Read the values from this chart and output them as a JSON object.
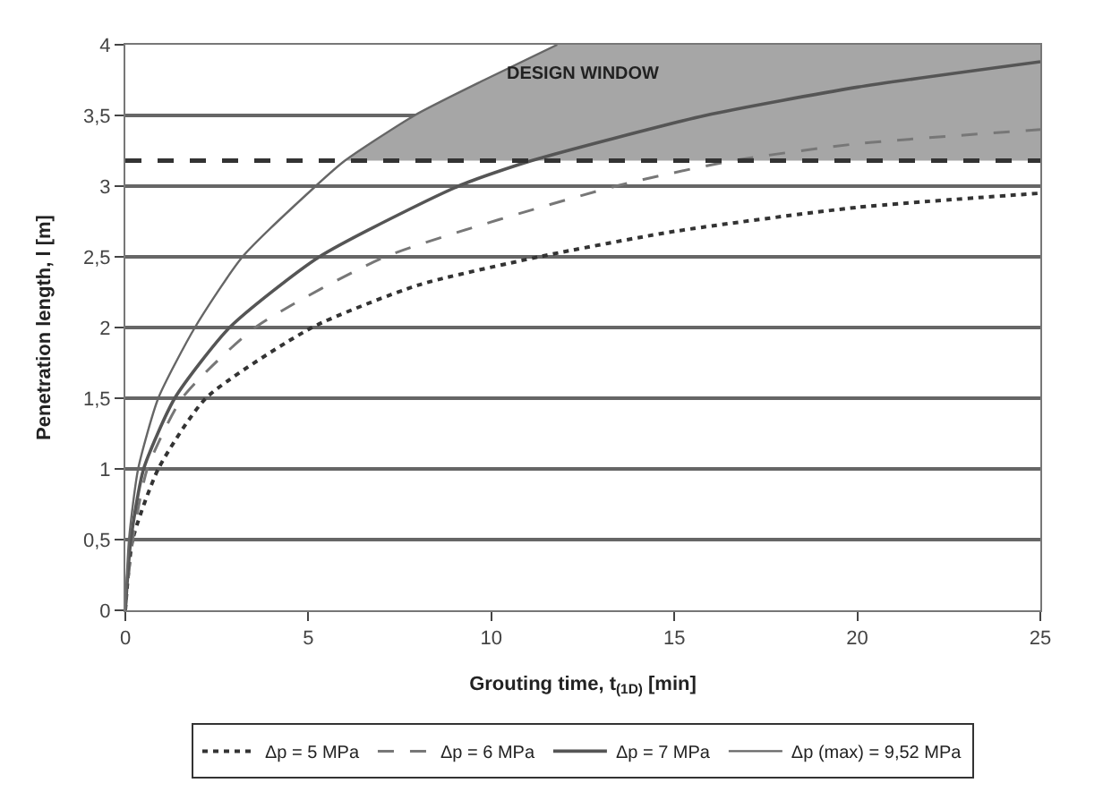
{
  "chart_data": {
    "type": "line",
    "xlabel": "Grouting time, t$_{(1D)}$ [min]",
    "ylabel": "Penetration length, l [m]",
    "xlim": [
      0,
      25
    ],
    "xticks": [
      0,
      5,
      10,
      15,
      20,
      25
    ],
    "ylim": [
      0,
      4
    ],
    "yticks": [
      0,
      {
        "value": 0.5,
        "label": "0,5"
      },
      1,
      {
        "value": 1.5,
        "label": "1,5"
      },
      2,
      {
        "value": 2.5,
        "label": "2,5"
      },
      3,
      {
        "value": 3.5,
        "label": "3,5"
      },
      4
    ],
    "grid": "y",
    "legend": "bottom",
    "marker": "none",
    "series": [
      {
        "name": "Δp = 5 MPa",
        "color": "#333333",
        "line_style": "dotted",
        "x": [
          0,
          0.2,
          0.9,
          2.2,
          5.1,
          8,
          11.3,
          15,
          20,
          25
        ],
        "values": [
          0,
          0.5,
          1,
          1.5,
          2,
          2.3,
          2.5,
          2.68,
          2.85,
          2.95
        ]
      },
      {
        "name": "Δp = 6 MPa",
        "color": "#777777",
        "line_style": "dashed",
        "x": [
          0,
          0.2,
          0.6,
          1.55,
          3.55,
          7.1,
          13.4,
          16.6,
          20,
          25
        ],
        "values": [
          0,
          0.5,
          1,
          1.5,
          2,
          2.5,
          3,
          3.18,
          3.3,
          3.4
        ]
      },
      {
        "name": "Δp = 7 MPa",
        "color": "#555555",
        "line_style": "solid",
        "x": [
          0,
          0.15,
          0.5,
          1.35,
          2.85,
          5.3,
          9.1,
          11.1,
          15.85,
          20,
          25
        ],
        "values": [
          0,
          0.5,
          1,
          1.5,
          2,
          2.5,
          3,
          3.18,
          3.5,
          3.7,
          3.88
        ]
      },
      {
        "name": "Δp (max) = 9,52 MPa",
        "color": "#666666",
        "line_style": "solid",
        "x": [
          0,
          0.1,
          0.35,
          0.9,
          1.9,
          3.2,
          5.2,
          6,
          7.9,
          9.8,
          11.8
        ],
        "values": [
          0,
          0.5,
          1,
          1.5,
          2,
          2.5,
          3,
          3.18,
          3.5,
          3.75,
          4
        ]
      }
    ],
    "ref_lines": [
      {
        "axis": "y",
        "value": 3.18,
        "color": "#333333",
        "line_style": "dashed"
      }
    ],
    "bands": [
      {
        "axis": "y",
        "from": 3.18,
        "to": 4,
        "label": "DESIGN WINDOW",
        "color": "#a6a6a6"
      }
    ]
  }
}
